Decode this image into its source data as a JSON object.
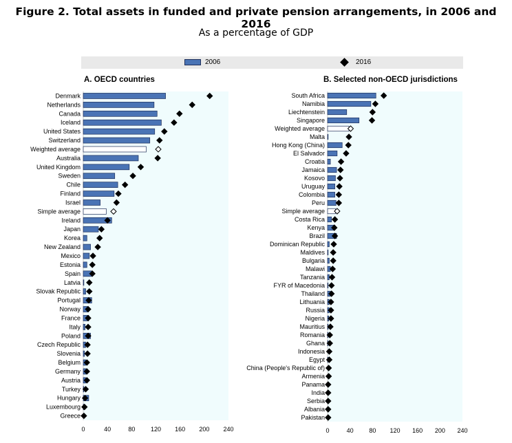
{
  "title": "Figure 2. Total assets in funded and private pension arrangements, in 2006 and 2016",
  "subtitle": "As a percentage of GDP",
  "legend": {
    "series_2006": "2006",
    "series_2016": "2016"
  },
  "colors": {
    "bar": "#4a74b5",
    "bar_border": "#1f2f5a",
    "highlight_bar": "#ffffff",
    "plot_bg": "#f0fcfd",
    "legend_bg": "#e9e9e9"
  },
  "chart_data": [
    {
      "type": "bar",
      "orientation": "horizontal",
      "title": "A. OECD countries",
      "xlim": [
        0,
        240
      ],
      "xticks": [
        0,
        40,
        80,
        120,
        160,
        200,
        240
      ],
      "categories": [
        "Denmark",
        "Netherlands",
        "Canada",
        "Iceland",
        "United States",
        "Switzerland",
        "Weighted average",
        "Australia",
        "United Kingdom",
        "Sweden",
        "Chile",
        "Finland",
        "Israel",
        "Simple average",
        "Ireland",
        "Japan",
        "Korea",
        "New Zealand",
        "Mexico",
        "Estonia",
        "Spain",
        "Latvia",
        "Slovak Republic",
        "Portugal",
        "Norway",
        "France",
        "Italy",
        "Poland",
        "Czech Republic",
        "Slovenia",
        "Belgium",
        "Germany",
        "Austria",
        "Turkey",
        "Hungary",
        "Luxembourg",
        "Greece"
      ],
      "highlight": [
        "Weighted average",
        "Simple average"
      ],
      "series": [
        {
          "name": "2006",
          "style": "bar",
          "values": [
            136,
            117,
            122,
            129,
            118,
            110,
            104,
            91,
            76,
            52,
            57,
            51,
            28,
            38,
            47,
            25,
            6,
            12,
            10,
            6,
            15,
            1,
            4,
            14,
            7,
            9,
            3,
            12,
            4,
            2,
            4,
            5,
            4,
            1,
            9,
            1,
            0
          ]
        },
        {
          "name": "2016",
          "style": "diamond",
          "values": [
            209,
            180,
            159,
            150,
            134,
            126,
            124,
            123,
            95,
            82,
            69,
            58,
            55,
            50,
            40,
            30,
            27,
            24,
            16,
            15,
            15,
            10,
            10,
            9,
            8,
            8,
            8,
            8,
            7,
            7,
            6,
            6,
            6,
            4,
            3,
            2,
            1
          ]
        }
      ]
    },
    {
      "type": "bar",
      "orientation": "horizontal",
      "title": "B. Selected non-OECD jurisdictions",
      "xlim": [
        0,
        240
      ],
      "xticks": [
        0,
        40,
        80,
        120,
        160,
        200,
        240
      ],
      "categories": [
        "South Africa",
        "Namibia",
        "Liechtenstein",
        "Singapore",
        "Weighted average",
        "Malta",
        "Hong Kong (China)",
        "El Salvador",
        "Croatia",
        "Jamaica",
        "Kosovo",
        "Uruguay",
        "Colombia",
        "Peru",
        "Simple average",
        "Costa Rica",
        "Kenya",
        "Brazil",
        "Dominican Republic",
        "Maldives",
        "Bulgaria",
        "Malawi",
        "Tanzania",
        "FYR of Macedonia",
        "Thailand",
        "Lithuania",
        "Russia",
        "Nigeria",
        "Mauritius",
        "Romania",
        "Ghana",
        "Indonesia",
        "Egypt",
        "China (People's Republic of)",
        "Armenia",
        "Panama",
        "India",
        "Serbia",
        "Albania",
        "Pakistan"
      ],
      "highlight": [
        "Weighted average",
        "Simple average"
      ],
      "series": [
        {
          "name": "2006",
          "style": "bar",
          "values": [
            86,
            77,
            34,
            56,
            38,
            1,
            26,
            17,
            5,
            16,
            14,
            13,
            13,
            15,
            14,
            7,
            13,
            16,
            3,
            1,
            3,
            5,
            3,
            1,
            5,
            3,
            3,
            2,
            1,
            1,
            1,
            0,
            1,
            0,
            0,
            0,
            0,
            0,
            0,
            0
          ]
        },
        {
          "name": "2016",
          "style": "diamond",
          "values": [
            100,
            85,
            80,
            79,
            41,
            38,
            37,
            33,
            24,
            23,
            22,
            21,
            20,
            20,
            17,
            13,
            12,
            13,
            11,
            10,
            10,
            9,
            8,
            7,
            7,
            6,
            6,
            6,
            5,
            4,
            4,
            3,
            3,
            2,
            2,
            1,
            1,
            1,
            1,
            1
          ]
        }
      ]
    }
  ]
}
